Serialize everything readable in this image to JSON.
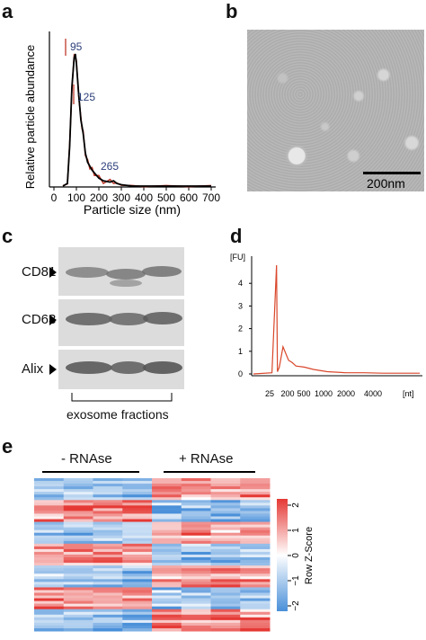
{
  "panels": {
    "a": "a",
    "b": "b",
    "c": "c",
    "d": "d",
    "e": "e"
  },
  "panel_a": {
    "ylabel": "Relative particle abundance",
    "xlabel": "Particle size (nm)",
    "xticks": [
      "0",
      "100",
      "200",
      "300",
      "400",
      "500",
      "600",
      "700"
    ],
    "peaks": [
      "95",
      "125",
      "265"
    ]
  },
  "panel_b": {
    "scale_label": "200nm"
  },
  "panel_c": {
    "bands": [
      "CD81",
      "CD63",
      "Alix"
    ],
    "caption": "exosome fractions"
  },
  "panel_d": {
    "yunit": "[FU]",
    "yticks": [
      "0",
      "1",
      "2",
      "3",
      "4"
    ],
    "xticks": [
      "25",
      "200",
      "500",
      "1000",
      "2000",
      "4000"
    ],
    "xunit": "[nt]",
    "line_color": "#d9472b"
  },
  "panel_e": {
    "group1": "- RNAse",
    "group2": "+ RNAse",
    "legend_label": "Row Z-Score",
    "legend_ticks": [
      "2",
      "1",
      "0",
      "−1",
      "−2"
    ],
    "colors": {
      "high": "#e53935",
      "mid": "#ffffff",
      "low": "#4a90d9"
    }
  },
  "chart_data": [
    {
      "type": "line",
      "panel": "a",
      "xlabel": "Particle size (nm)",
      "ylabel": "Relative particle abundance",
      "xlim": [
        0,
        700
      ],
      "x": [
        40,
        60,
        70,
        80,
        90,
        95,
        100,
        110,
        120,
        125,
        130,
        140,
        150,
        160,
        170,
        180,
        200,
        220,
        250,
        265,
        280,
        300,
        350,
        400,
        500,
        600,
        700
      ],
      "values": [
        0,
        0.02,
        0.3,
        0.75,
        0.97,
        1.0,
        0.93,
        0.7,
        0.5,
        0.45,
        0.4,
        0.25,
        0.18,
        0.15,
        0.12,
        0.1,
        0.06,
        0.04,
        0.03,
        0.04,
        0.02,
        0.01,
        0,
        0,
        0,
        0,
        0
      ],
      "annotations": [
        "95",
        "125",
        "265"
      ]
    },
    {
      "type": "line",
      "panel": "d",
      "ylabel": "[FU]",
      "xlabel": "[nt]",
      "ylim": [
        0,
        5
      ],
      "x_ticks": [
        "25",
        "200",
        "500",
        "1000",
        "2000",
        "4000"
      ],
      "x": [
        0,
        20,
        25,
        26,
        28,
        32,
        38,
        42,
        46,
        55,
        65,
        80,
        100,
        120,
        140,
        160,
        180
      ],
      "values": [
        0,
        0.05,
        4.8,
        0.1,
        0.3,
        1.2,
        0.6,
        0.5,
        0.35,
        0.3,
        0.2,
        0.1,
        0.05,
        0.05,
        0.03,
        0.03,
        0.03
      ]
    },
    {
      "type": "heatmap",
      "panel": "e",
      "columns": [
        "- RNAse",
        "- RNAse",
        "- RNAse",
        "- RNAse",
        "+ RNAse",
        "+ RNAse",
        "+ RNAse",
        "+ RNAse"
      ],
      "legend": "Row Z-Score",
      "range": [
        -2,
        2
      ]
    }
  ]
}
